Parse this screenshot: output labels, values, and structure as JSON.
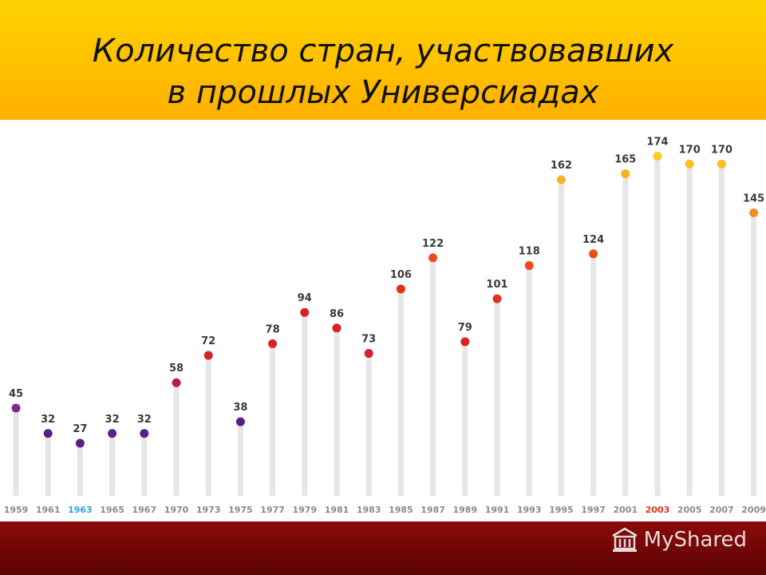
{
  "title": {
    "line1": "Количество стран, участвовавших",
    "line2": "в прошлых Универсиадах"
  },
  "watermark": {
    "text": "MyShared",
    "icon": "building-icon"
  },
  "colors": {
    "header": "#ffc400",
    "footer": "#7a0808",
    "stem": "#e6e6e6",
    "year_label": "#8a8a8a",
    "year_highlight_blue": "#2ea3d6",
    "year_highlight_red": "#e53013"
  },
  "chart_data": {
    "type": "lollipop",
    "title": "Количество стран, участвовавших в прошлых Универсиадах",
    "categories": [
      "1959",
      "1961",
      "1963",
      "1965",
      "1967",
      "1970",
      "1973",
      "1975",
      "1977",
      "1979",
      "1981",
      "1983",
      "1985",
      "1987",
      "1989",
      "1991",
      "1993",
      "1995",
      "1997",
      "2001",
      "2003",
      "2005",
      "2007",
      "2009"
    ],
    "values": [
      45,
      32,
      27,
      32,
      32,
      58,
      72,
      38,
      78,
      94,
      86,
      73,
      106,
      122,
      79,
      101,
      118,
      162,
      124,
      165,
      174,
      170,
      170,
      145
    ],
    "point_colors": [
      "#7b2a8c",
      "#5a1f86",
      "#5a1f86",
      "#5a1f86",
      "#5a1f86",
      "#c0144a",
      "#d81f2a",
      "#5a1f86",
      "#d81f2a",
      "#d81f2a",
      "#d81f2a",
      "#d81f2a",
      "#e0301b",
      "#ee4b1a",
      "#d81f2a",
      "#e0301b",
      "#ee4b1a",
      "#f7b31f",
      "#ee4b1a",
      "#f7b31f",
      "#f9cd28",
      "#f7c21f",
      "#f7c21f",
      "#f09020"
    ],
    "highlighted_categories": {
      "1963": "#2ea3d6",
      "2003": "#e53013"
    },
    "ylim": [
      0,
      180
    ],
    "grid": false,
    "legend": "none"
  }
}
